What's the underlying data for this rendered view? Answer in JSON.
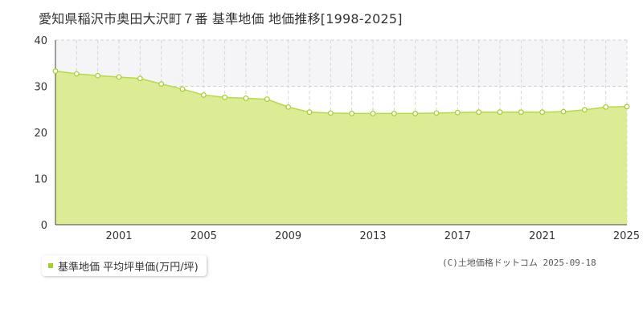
{
  "title": "愛知県稲沢市奥田大沢町７番 基準地価 地価推移[1998-2025]",
  "legend": {
    "label": "基準地価 平均坪単価(万円/坪)"
  },
  "copyright": "(C)土地価格ドットコム 2025-09-18",
  "colors": {
    "fill": "#dcec94",
    "line": "#b7d94a",
    "point_stroke": "#a3cf2a",
    "band": "#f5f5f7"
  },
  "chart_data": {
    "type": "area",
    "title": "愛知県稲沢市奥田大沢町７番 基準地価 地価推移[1998-2025]",
    "xlabel": "",
    "ylabel": "",
    "xlim": [
      1998,
      2025
    ],
    "ylim": [
      0,
      40
    ],
    "x_tick_labels": [
      "2001",
      "2005",
      "2009",
      "2013",
      "2017",
      "2021",
      "2025"
    ],
    "y_tick_labels": [
      "0",
      "10",
      "20",
      "30",
      "40"
    ],
    "grid": true,
    "legend_position": "bottom-left",
    "series": [
      {
        "name": "基準地価 平均坪単価(万円/坪)",
        "x": [
          1998,
          1999,
          2000,
          2001,
          2002,
          2003,
          2004,
          2005,
          2006,
          2007,
          2008,
          2009,
          2010,
          2011,
          2012,
          2013,
          2014,
          2015,
          2016,
          2017,
          2018,
          2019,
          2020,
          2021,
          2022,
          2023,
          2024,
          2025
        ],
        "values": [
          33.3,
          32.7,
          32.3,
          32.0,
          31.7,
          30.5,
          29.4,
          28.1,
          27.6,
          27.4,
          27.2,
          25.5,
          24.4,
          24.2,
          24.1,
          24.1,
          24.1,
          24.1,
          24.2,
          24.3,
          24.4,
          24.4,
          24.4,
          24.4,
          24.5,
          24.9,
          25.5,
          25.6
        ]
      }
    ]
  }
}
